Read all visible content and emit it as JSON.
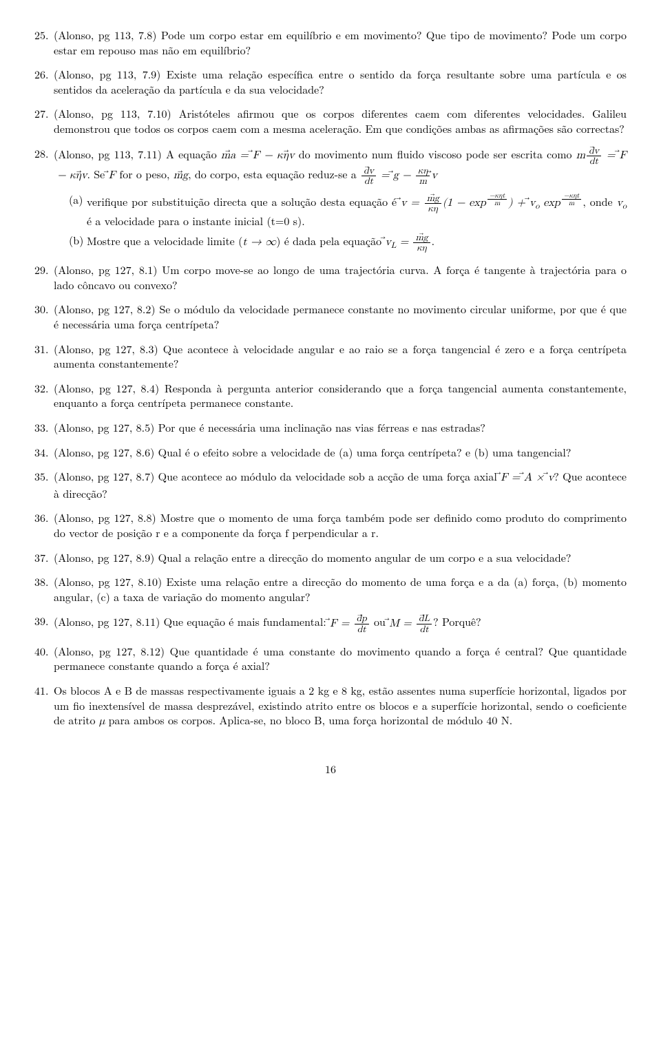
{
  "page_number": "16",
  "questions": [
    {
      "text": "(Alonso, pg 113, 7.8) Pode um corpo estar em equilíbrio e em movimento? Que tipo de movimento? Pode um corpo estar em repouso mas não em equilíbrio?"
    },
    {
      "text": "(Alonso, pg 113, 7.9) Existe uma relação específica entre o sentido da força resultante sobre uma partícula e os sentidos da aceleração da partícula e da sua velocidade?"
    },
    {
      "text": "(Alonso, pg 113, 7.10) Aristóteles afirmou que os corpos diferentes caem com diferentes velocidades. Galileu demonstrou que todos os corpos caem com a mesma aceleração. Em que condições ambas as afirmações são correctas?"
    },
    {
      "pre": "(Alonso, pg 113, 7.11) A equação ",
      "mid1": " do movimento num fluido viscoso pode ser escrita como ",
      "mid2": ". Se ",
      "mid3": " for o peso, ",
      "mid4": ", do corpo, esta equação reduz-se a ",
      "sub_a_pre": "verifique por substituição directa que a solução desta equação é ",
      "sub_a_mid": ", onde ",
      "sub_a_post": " é a velocidade para o instante inicial (t=0 s).",
      "sub_b_pre": "Mostre que a velocidade limite (",
      "sub_b_mid": ") é dada pela equação "
    },
    {
      "text": "(Alonso, pg 127, 8.1) Um corpo move-se ao longo de uma trajectória curva.  A força é tangente à trajectória para o lado côncavo ou convexo?"
    },
    {
      "text": "(Alonso, pg 127, 8.2) Se o módulo da velocidade permanece constante no movimento circular uniforme, por que é que é necessária uma força centrípeta?"
    },
    {
      "text": "(Alonso, pg 127, 8.3) Que acontece à velocidade angular e ao raio se a força tangencial é zero e a força centrípeta aumenta constantemente?"
    },
    {
      "text": "(Alonso, pg 127, 8.4) Responda à pergunta anterior considerando que a força tangencial aumenta constantemente, enquanto a força centrípeta permanece constante."
    },
    {
      "text": "(Alonso, pg 127, 8.5) Por que é necessária uma inclinação nas vias férreas e nas estradas?"
    },
    {
      "text": "(Alonso, pg 127, 8.6) Qual é o efeito sobre a velocidade de (a) uma força centrípeta? e (b) uma tangencial?"
    },
    {
      "pre": "(Alonso, pg 127, 8.7) Que acontece ao módulo da velocidade sob a acção de uma força axial ",
      "post": "? Que acontece à direcção?"
    },
    {
      "text": "(Alonso, pg 127, 8.8) Mostre que o momento de uma força também pode ser definido como produto do comprimento do vector de posição r e a componente da força f perpendicular a r."
    },
    {
      "text": "(Alonso, pg 127, 8.9) Qual a relação entre a direcção do momento angular de um corpo e a sua velocidade?"
    },
    {
      "text": "(Alonso, pg 127, 8.10) Existe uma relação entre a direcção do momento de uma força e a da (a) força, (b) momento angular, (c) a taxa de variação do momento angular?"
    },
    {
      "pre": "(Alonso, pg 127, 8.11) Que equação é mais fundamental: ",
      "mid": " ou ",
      "post": "? Porquê?"
    },
    {
      "text": "(Alonso, pg 127, 8.12) Que quantidade é uma constante do movimento quando a força é central? Que quantidade permanece constante quando a força é axial?"
    },
    {
      "pre": "Os blocos A e B de massas respectivamente iguais a 2 kg e 8 kg, estão assentes numa superfície horizontal, ligados por um fio inextensível de massa desprezável, existindo atrito entre os blocos e a superfície horizontal, sendo o coeficiente de atrito ",
      "post": " para ambos os corpos. Aplica-se, no bloco B, uma força horizontal de módulo 40 N."
    }
  ]
}
